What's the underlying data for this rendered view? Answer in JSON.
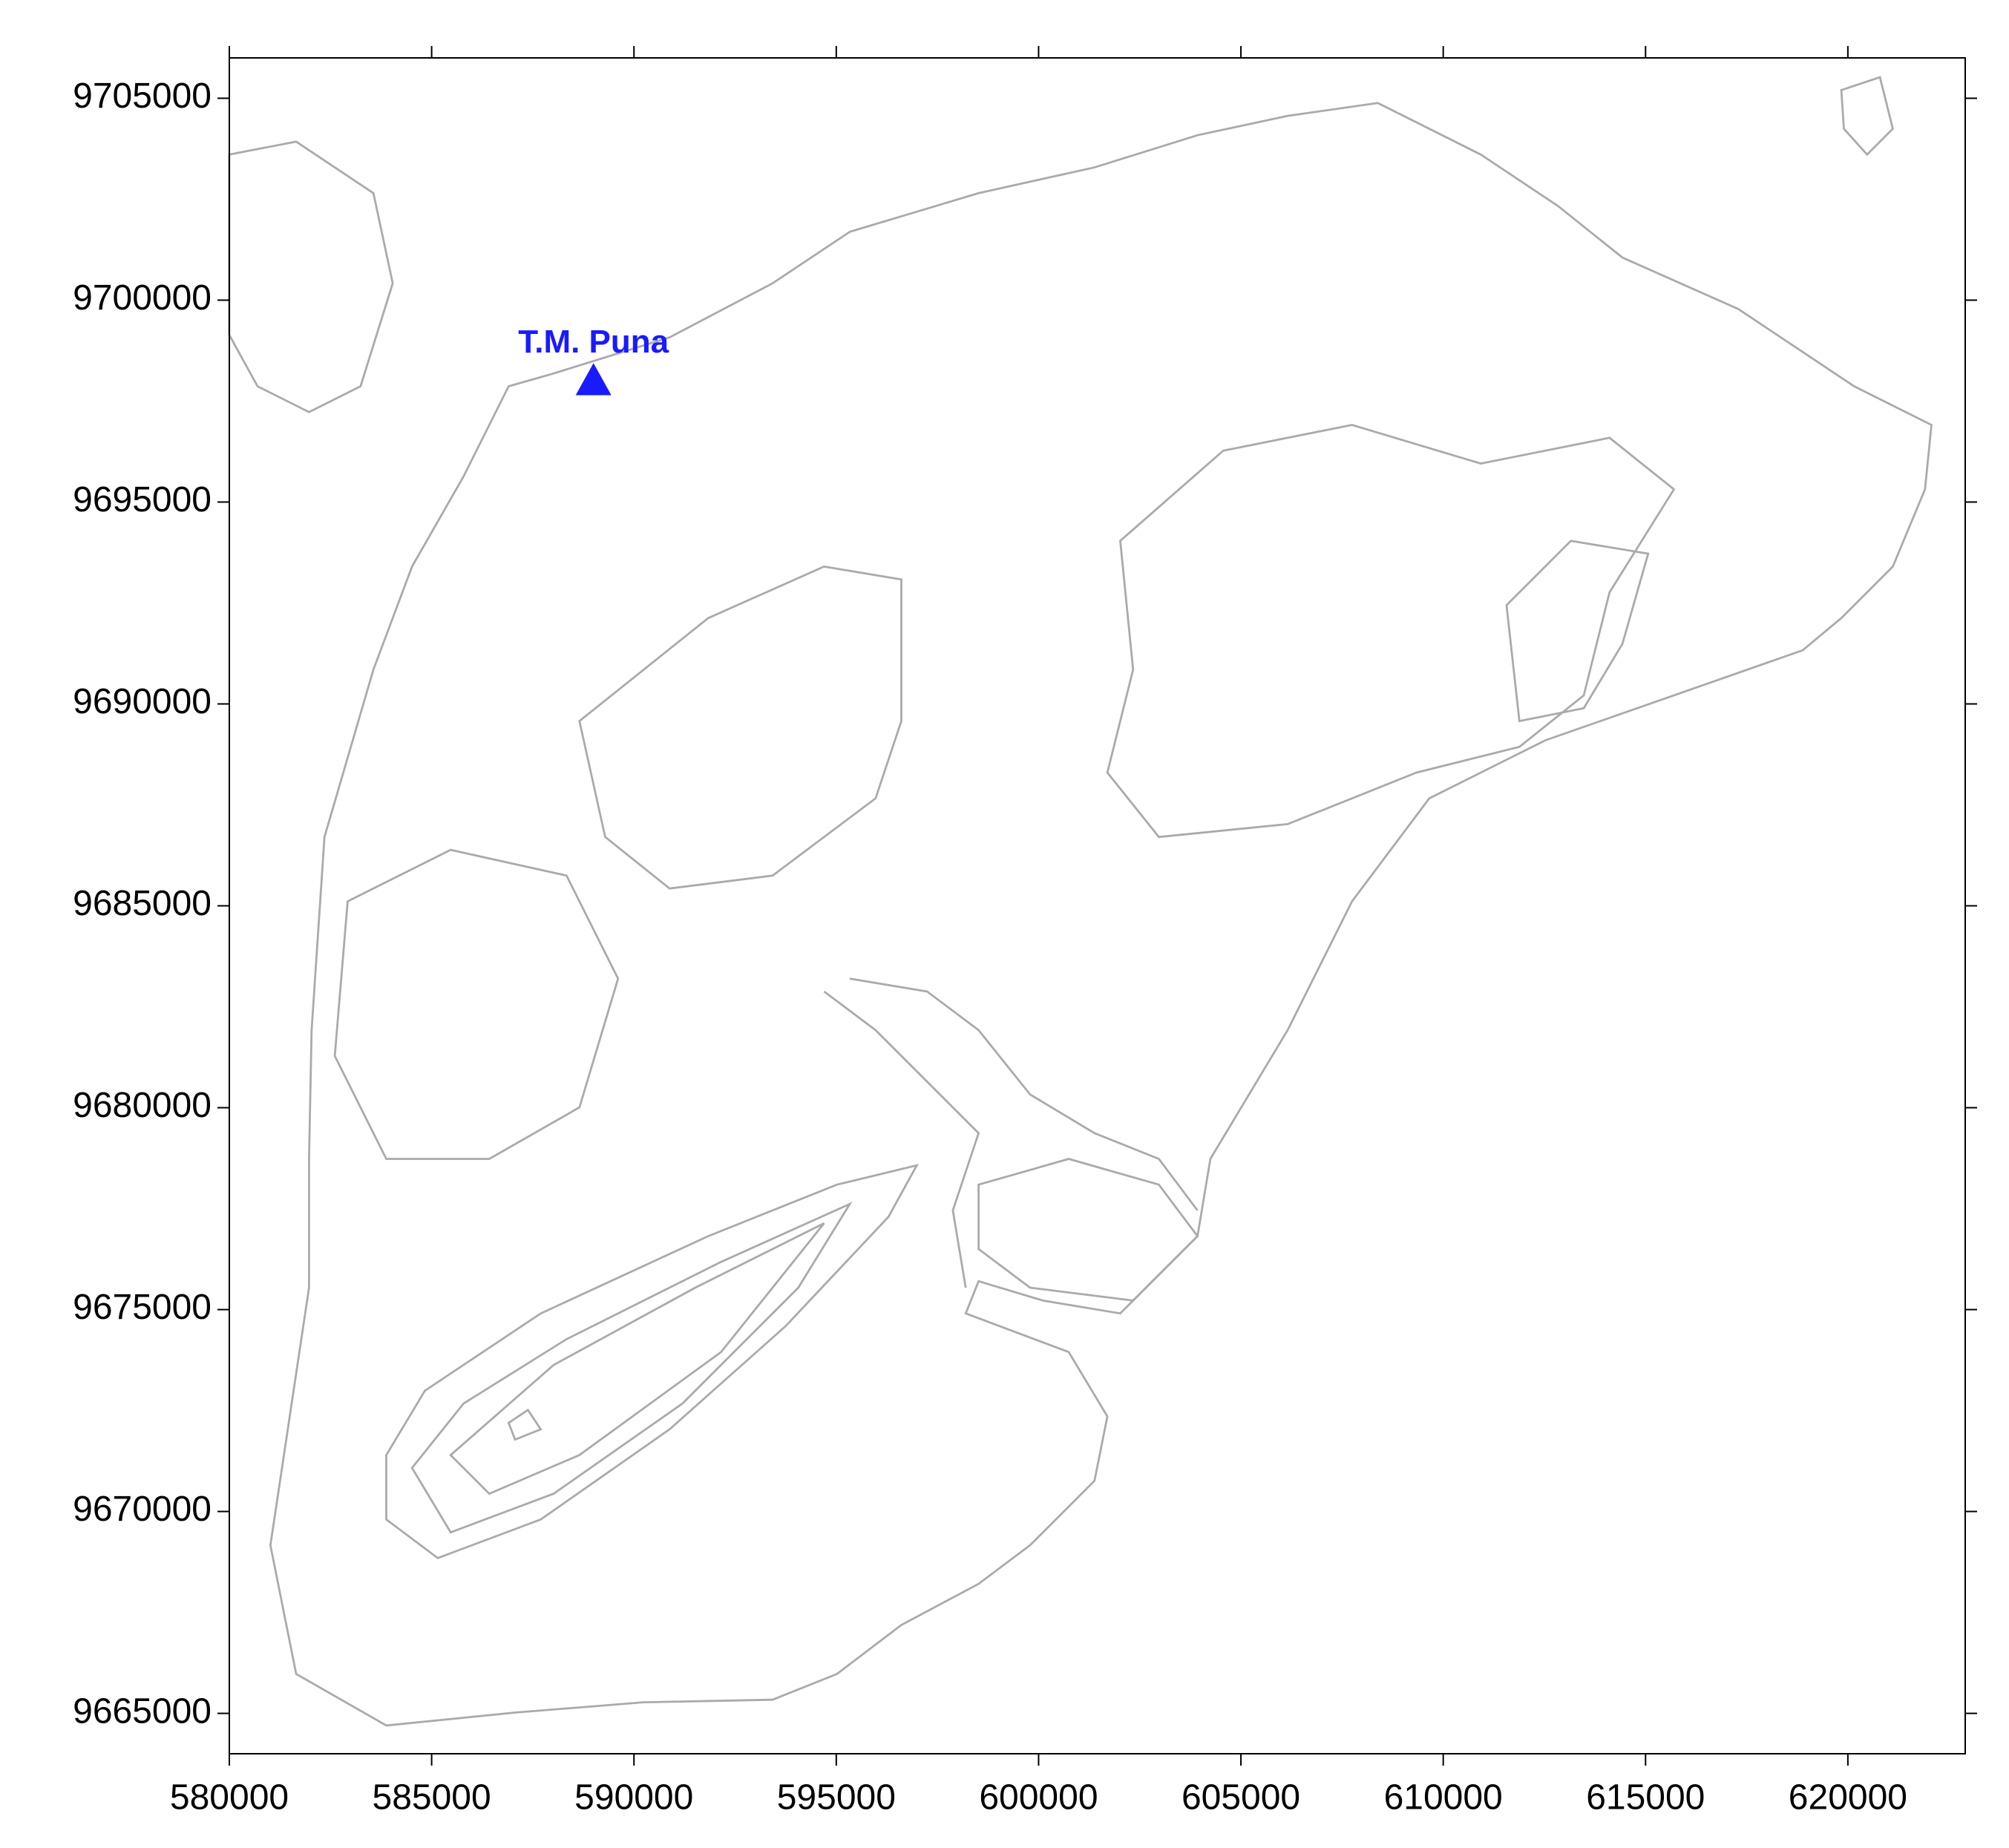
{
  "chart_data": {
    "type": "map",
    "xlim": [
      580000,
      622900
    ],
    "ylim": [
      9664000,
      9706000
    ],
    "xticks": [
      580000,
      585000,
      590000,
      595000,
      600000,
      605000,
      610000,
      615000,
      620000
    ],
    "yticks": [
      9665000,
      9670000,
      9675000,
      9680000,
      9685000,
      9690000,
      9695000,
      9700000,
      9705000
    ],
    "points": [
      {
        "name": "T.M. Puna",
        "color": "#1a1aff",
        "x": 589000,
        "y": 9698000
      }
    ]
  }
}
